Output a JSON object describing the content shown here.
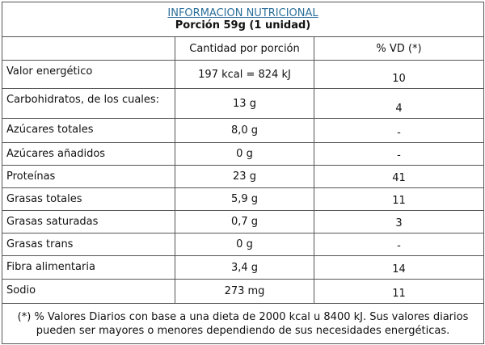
{
  "header": {
    "title": "INFORMACION NUTRICIONAL",
    "subtitle": "Porción 59g (1 unidad)"
  },
  "table": {
    "columns": [
      "Cantidad por porción",
      "% VD (*)"
    ],
    "rows": [
      [
        "Valor energético",
        "197 kcal = 824 kJ",
        "10"
      ],
      [
        "Carbohidratos, de los cuales:",
        "13 g",
        "4"
      ],
      [
        "Azúcares totales",
        "8,0 g",
        "-"
      ],
      [
        "Azúcares añadidos",
        "0 g",
        "-"
      ],
      [
        "Proteínas",
        "23 g",
        "41"
      ],
      [
        "Grasas totales",
        "5,9 g",
        "11"
      ],
      [
        "Grasas saturadas",
        "0,7 g",
        "3"
      ],
      [
        "Grasas trans",
        "0 g",
        "-"
      ],
      [
        "Fibra alimentaria",
        "3,4 g",
        "14"
      ],
      [
        "Sodio",
        "273 mg",
        "11"
      ]
    ]
  },
  "footnote": "(*) % Valores Diarios con base a una dieta de 2000 kcal u 8400 kJ. Sus valores diarios pueden ser mayores o menores dependiendo de sus necesidades energéticas."
}
